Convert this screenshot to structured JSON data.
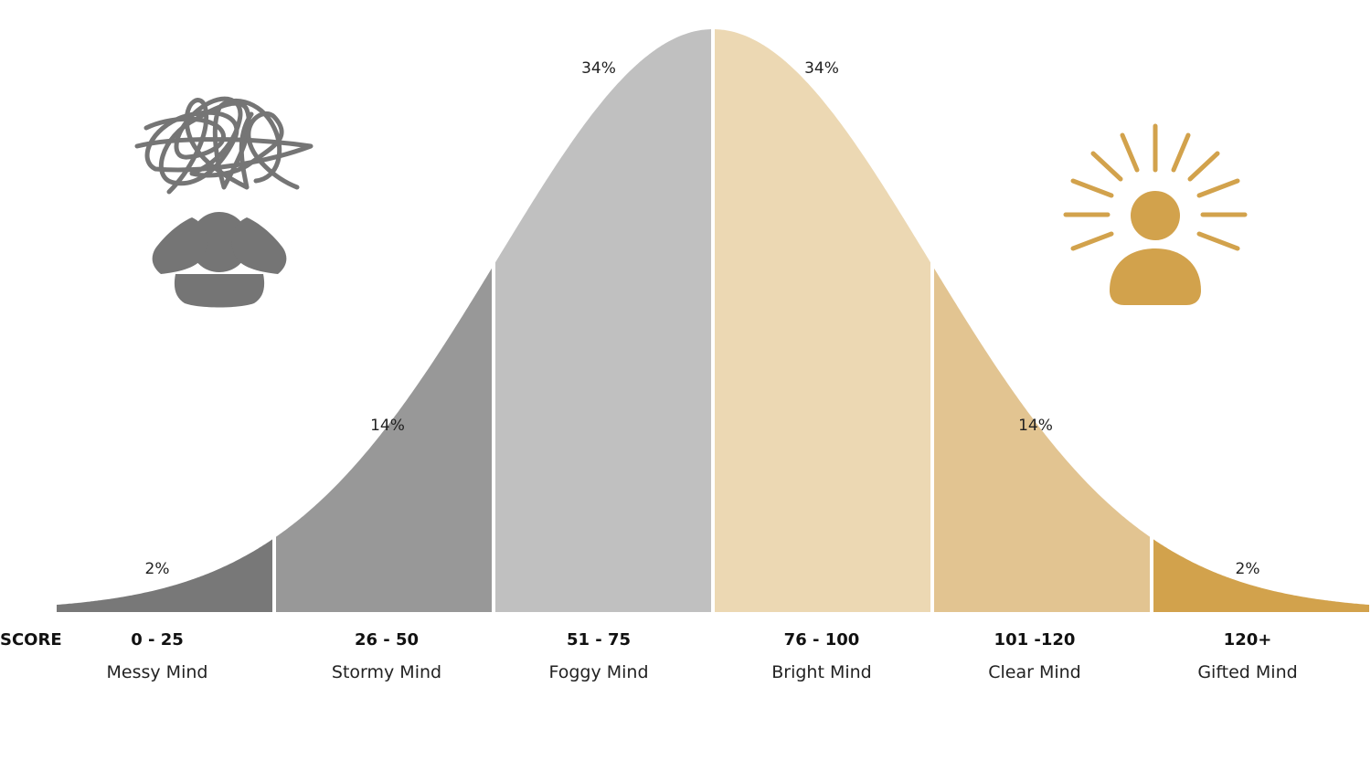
{
  "chart_data": {
    "type": "area",
    "title": "",
    "xlabel": "",
    "ylabel": "",
    "x_axis_title": "SCORE",
    "segments": [
      {
        "score": "0 - 25",
        "label": "Messy Mind",
        "percent": "2%",
        "value": 2,
        "color": "#787878"
      },
      {
        "score": "26 - 50",
        "label": "Stormy Mind",
        "percent": "14%",
        "value": 14,
        "color": "#989898"
      },
      {
        "score": "51 - 75",
        "label": "Foggy Mind",
        "percent": "34%",
        "value": 34,
        "color": "#c0c0c0"
      },
      {
        "score": "76 - 100",
        "label": "Bright Mind",
        "percent": "34%",
        "value": 34,
        "color": "#ecd8b3"
      },
      {
        "score": "101 -120",
        "label": "Clear Mind",
        "percent": "14%",
        "value": 14,
        "color": "#e2c491"
      },
      {
        "score": "120+",
        "label": "Gifted Mind",
        "percent": "2%",
        "value": 2,
        "color": "#d2a24c"
      }
    ],
    "grid": false,
    "legend": "none"
  },
  "icons": {
    "left": "stressed-person-scribble-icon",
    "right": "enlightened-person-icon",
    "left_color": "#757575",
    "right_color": "#d2a24c"
  }
}
